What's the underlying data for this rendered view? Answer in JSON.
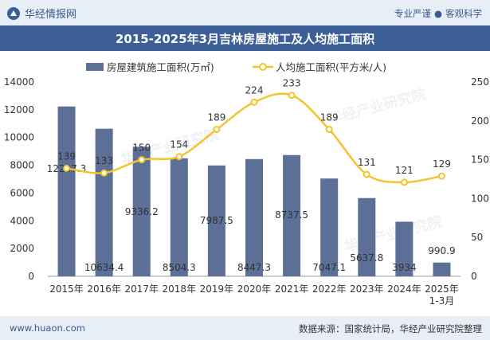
{
  "header": {
    "brand": "华经情报网",
    "tagline_left": "专业严谨",
    "tagline_sep": "●",
    "tagline_right": "客观科学",
    "title": "2015-2025年3月吉林房屋施工及人均施工面积"
  },
  "footer": {
    "website": "www.huaon.com",
    "source": "数据来源：国家统计局，华经产业研究院整理"
  },
  "watermark": "华经产业研究院",
  "colors": {
    "bar": "#5c6f97",
    "line": "#f5c32c",
    "header_bg": "#e8eef6",
    "title_bg": "#3b5f96",
    "accent_text": "#3a5a8c"
  },
  "chart_data": {
    "type": "bar",
    "categories": [
      "2015年",
      "2016年",
      "2017年",
      "2018年",
      "2019年",
      "2020年",
      "2021年",
      "2022年",
      "2023年",
      "2024年",
      "2025年 1-3月"
    ],
    "series": [
      {
        "name": "房屋建筑施工面积(万㎡)",
        "type": "bar",
        "axis": "left",
        "values": [
          12237.3,
          10634.4,
          9336.2,
          8504.3,
          7987.5,
          8447.3,
          8737.5,
          7047.1,
          5637.8,
          3934,
          990.9
        ],
        "labels": [
          "12237.3",
          "10634.4",
          "9336.2",
          "8504.3",
          "7987.5",
          "8447.3",
          "8737.5",
          "7047.1",
          "5637.8",
          "3934",
          "990.9"
        ]
      },
      {
        "name": "人均施工面积(平方米/人)",
        "type": "line",
        "axis": "right",
        "values": [
          139,
          133,
          150,
          154,
          189,
          224,
          233,
          189,
          131,
          121,
          129
        ],
        "labels": [
          "139",
          "133",
          "150",
          "154",
          "189",
          "224",
          "233",
          "189",
          "131",
          "121",
          "129"
        ]
      }
    ],
    "y_left": {
      "min": 0,
      "max": 14000,
      "ticks": [
        "0",
        "2000",
        "4000",
        "6000",
        "8000",
        "10000",
        "12000",
        "14000"
      ]
    },
    "y_right": {
      "min": 0,
      "max": 250,
      "ticks": [
        "0",
        "50",
        "100",
        "150",
        "200",
        "250"
      ]
    },
    "legend_position": "top",
    "grid": false
  }
}
